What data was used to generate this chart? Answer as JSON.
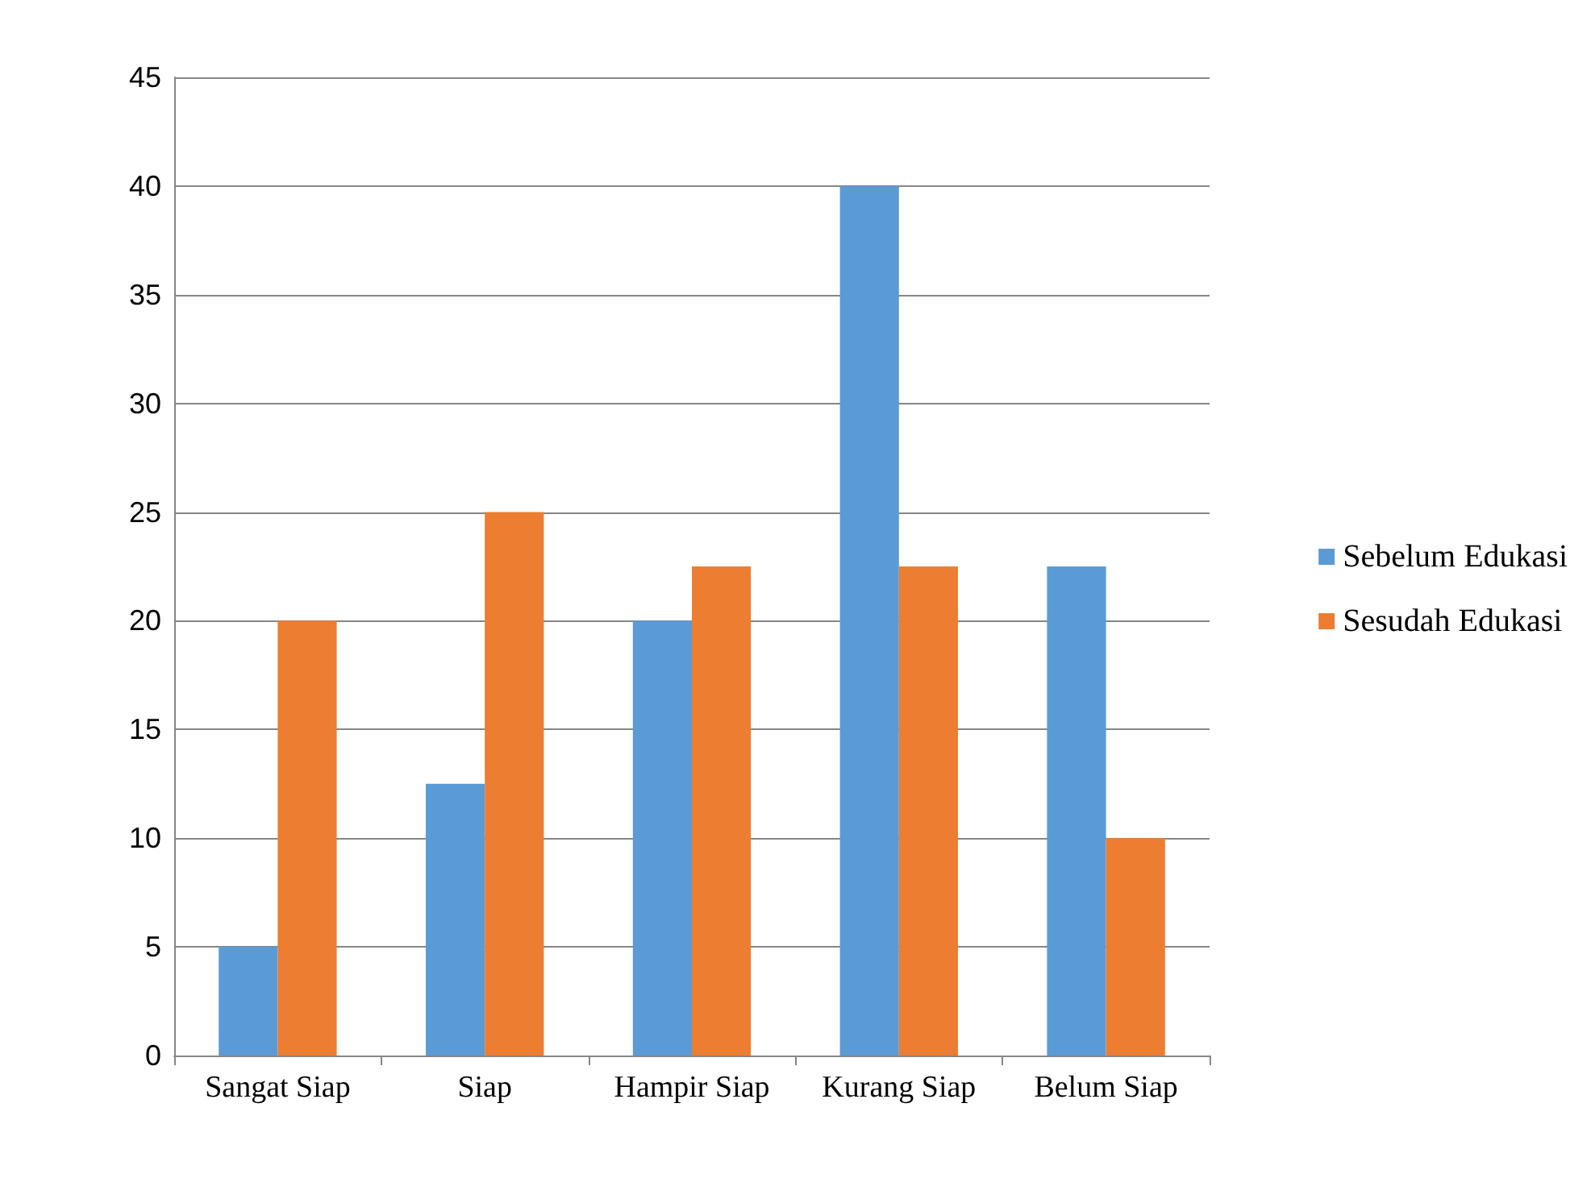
{
  "chart_data": {
    "type": "bar",
    "categories": [
      "Sangat Siap",
      "Siap",
      "Hampir Siap",
      "Kurang Siap",
      "Belum Siap"
    ],
    "series": [
      {
        "name": "Sebelum Edukasi",
        "color": "#5b9bd5",
        "values": [
          5,
          12.5,
          20,
          40,
          22.5
        ]
      },
      {
        "name": "Sesudah Edukasi",
        "color": "#ed7d31",
        "values": [
          20,
          25,
          22.5,
          22.5,
          10
        ]
      }
    ],
    "ylim": [
      0,
      45
    ],
    "yticks": [
      0,
      5,
      10,
      15,
      20,
      25,
      30,
      35,
      40,
      45
    ],
    "grid": "y",
    "legend": "right"
  }
}
